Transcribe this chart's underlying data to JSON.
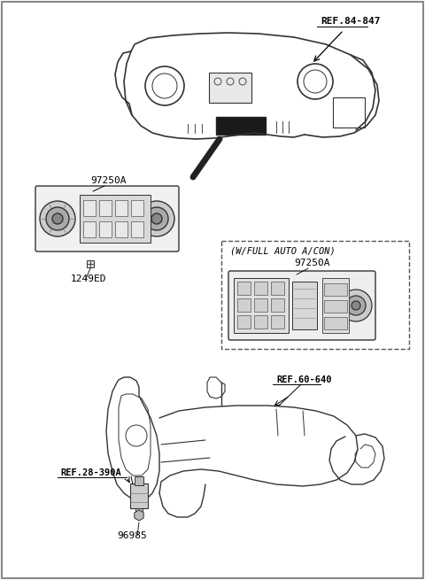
{
  "title": "",
  "bg_color": "#ffffff",
  "border_color": "#000000",
  "line_color": "#333333",
  "text_color": "#000000",
  "labels": {
    "ref_84_847": "REF.84-847",
    "part_97250A_main": "97250A",
    "part_97250A_auto": "97250A",
    "part_1249ED": "1249ED",
    "part_96985": "96985",
    "ref_60_640": "REF.60-640",
    "ref_28_390A": "REF.28-390A",
    "w_full_auto": "(W/FULL AUTO A/CON)"
  },
  "figsize": [
    4.8,
    6.55
  ],
  "dpi": 100
}
